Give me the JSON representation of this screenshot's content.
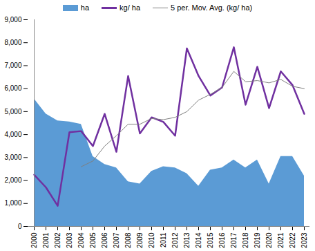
{
  "chart_data": {
    "type": "line",
    "categories": [
      "2000",
      "2001",
      "2002",
      "2003",
      "2004",
      "2005",
      "2006",
      "2007",
      "2008",
      "2009",
      "2010",
      "2011",
      "2012",
      "2013",
      "2014",
      "2015",
      "2016",
      "2017",
      "2018",
      "2019",
      "2020",
      "2021",
      "2022",
      "2023"
    ],
    "series": [
      {
        "name": "ha",
        "type": "area",
        "color": "#5b9bd5",
        "values": [
          5550,
          4900,
          4600,
          4550,
          4450,
          3050,
          2700,
          2550,
          1950,
          1850,
          2400,
          2600,
          2550,
          2300,
          1750,
          2450,
          2550,
          2900,
          2550,
          2900,
          1850,
          3050,
          3050,
          2200
        ]
      },
      {
        "name": "kg/ ha",
        "type": "line",
        "color": "#7030a0",
        "values": [
          2250,
          1700,
          900,
          4100,
          4150,
          3500,
          4900,
          3250,
          6550,
          4050,
          4750,
          4550,
          3950,
          7750,
          6550,
          5700,
          6050,
          7800,
          5300,
          6950,
          5150,
          6750,
          6150,
          4900
        ]
      },
      {
        "name": "5 per. Mov. Avg. (kg/ ha)",
        "type": "line",
        "color": "#7f7f7f",
        "values": [
          null,
          null,
          null,
          null,
          2600,
          2850,
          3500,
          3950,
          4450,
          4450,
          4700,
          4650,
          4750,
          5000,
          5500,
          5750,
          6050,
          6750,
          6300,
          6350,
          6250,
          6400,
          6100,
          6000
        ]
      }
    ],
    "ylim": [
      0,
      9000
    ],
    "yticks": [
      0,
      1000,
      2000,
      3000,
      4000,
      5000,
      6000,
      7000,
      8000,
      9000
    ],
    "grid": false,
    "legend": "top"
  }
}
